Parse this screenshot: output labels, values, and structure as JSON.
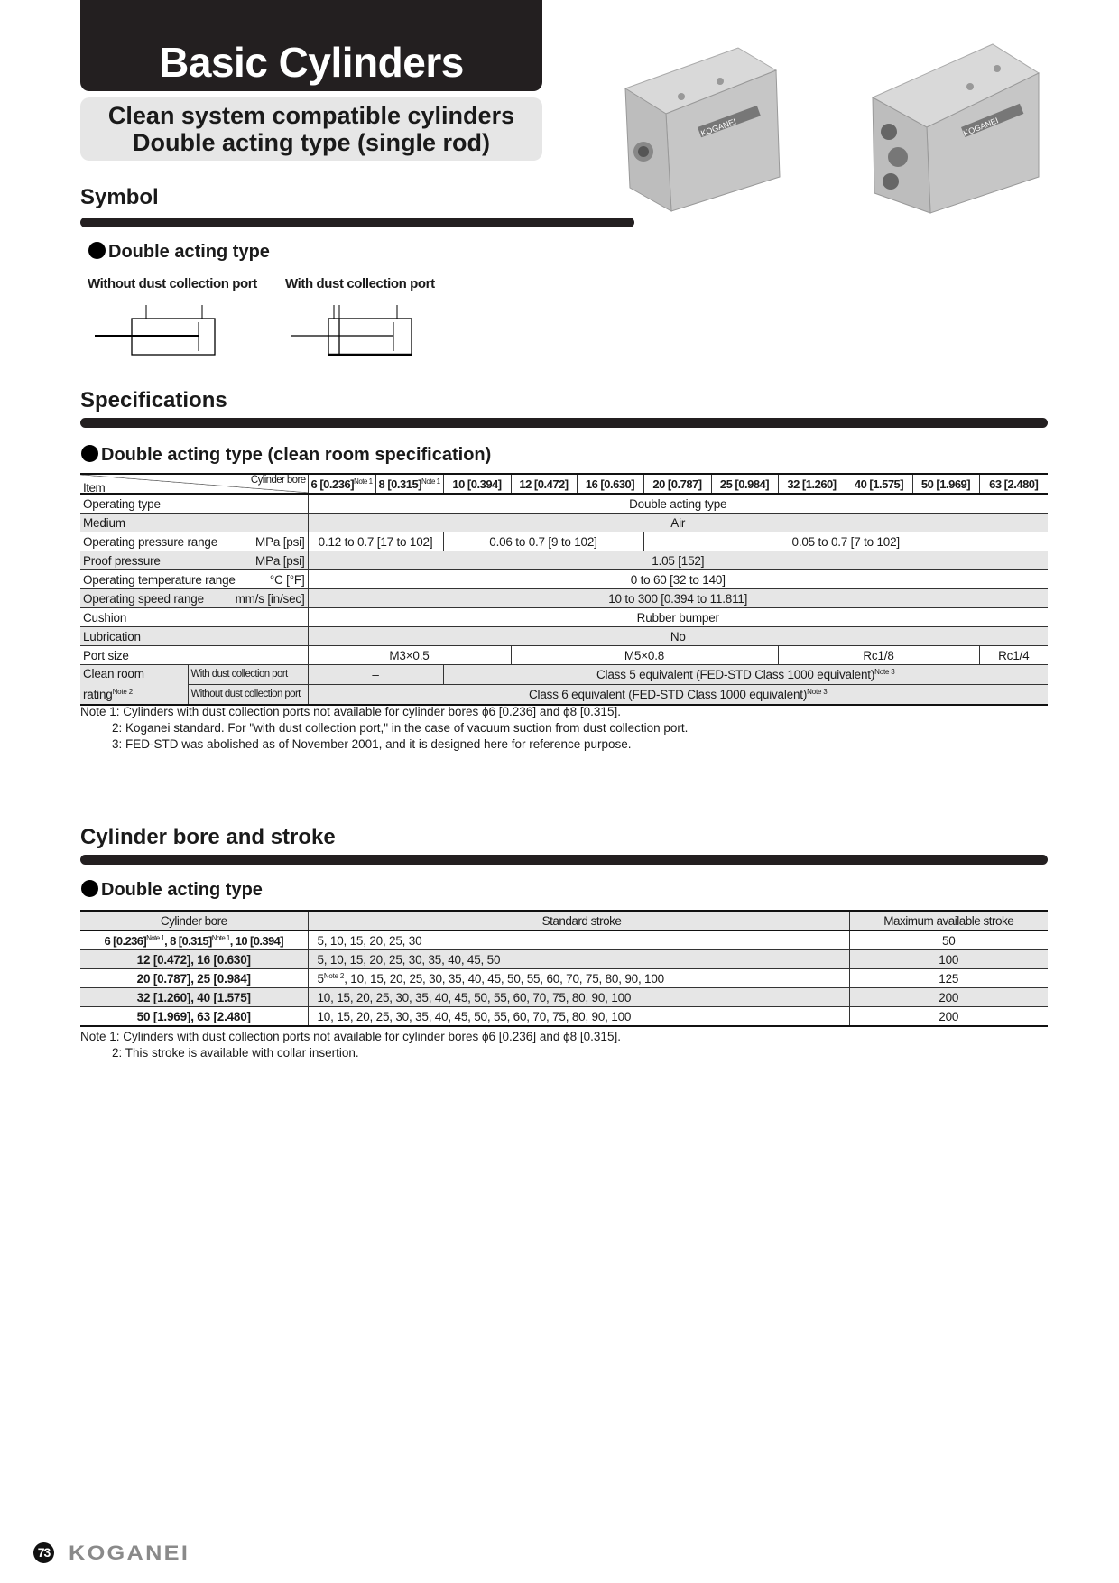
{
  "header": {
    "title": "Basic Cylinders",
    "subtitle_line1": "Clean system compatible cylinders",
    "subtitle_line2": "Double acting type (single rod)"
  },
  "symbol": {
    "heading": "Symbol",
    "subheading": "Double acting type",
    "label_without": "Without dust collection port",
    "label_with": "With dust collection port"
  },
  "specs": {
    "heading": "Specifications",
    "subheading": "Double acting type (clean room specification)",
    "corner_top": "Cylinder bore",
    "corner_bottom": "Item",
    "bores": [
      "6 [0.236]",
      "8 [0.315]",
      "10 [0.394]",
      "12 [0.472]",
      "16 [0.630]",
      "20 [0.787]",
      "25 [0.984]",
      "32 [1.260]",
      "40 [1.575]",
      "50 [1.969]",
      "63 [2.480]"
    ],
    "note_ref1": "Note 1",
    "note_ref2": "Note 2",
    "note_ref3": "Note 3",
    "rows": {
      "operating_type": {
        "label": "Operating type",
        "value": "Double acting type"
      },
      "medium": {
        "label": "Medium",
        "value": "Air"
      },
      "pressure": {
        "label": "Operating pressure range",
        "unit": "MPa [psi]",
        "values": [
          "0.12 to 0.7 [17 to 102]",
          "0.06 to 0.7 [9 to 102]",
          "0.05 to 0.7 [7 to 102]"
        ]
      },
      "proof": {
        "label": "Proof pressure",
        "unit": "MPa [psi]",
        "value": "1.05 [152]"
      },
      "temperature": {
        "label": "Operating temperature range",
        "unit": "°C [°F]",
        "value": "0 to 60 [32 to 140]"
      },
      "speed": {
        "label": "Operating speed range",
        "unit": "mm/s [in/sec]",
        "value": "10 to 300 [0.394 to 11.811]"
      },
      "cushion": {
        "label": "Cushion",
        "value": "Rubber bumper"
      },
      "lubrication": {
        "label": "Lubrication",
        "value": "No"
      },
      "port": {
        "label": "Port size",
        "values": [
          "M3×0.5",
          "M5×0.8",
          "Rc1/8",
          "Rc1/4"
        ]
      },
      "clean": {
        "label1": "Clean room",
        "label2": "rating",
        "with_label": "With dust collection port",
        "with_values": [
          "–",
          "Class 5 equivalent (FED-STD Class 1000 equivalent)"
        ],
        "without_label": "Without dust collection port",
        "without_value": "Class 6 equivalent (FED-STD Class 1000 equivalent)"
      }
    },
    "notes": [
      "Note 1: Cylinders with dust collection ports not available for cylinder bores ϕ6 [0.236] and ϕ8 [0.315].",
      "2: Koganei standard. For \"with dust collection port,\" in the case of vacuum suction from dust collection port.",
      "3: FED-STD was abolished as of November 2001, and it is designed here for reference purpose."
    ]
  },
  "stroke": {
    "heading": "Cylinder bore and stroke",
    "subheading": "Double acting type",
    "columns": [
      "Cylinder bore",
      "Standard stroke",
      "Maximum available stroke"
    ],
    "rows": [
      {
        "bore_a": "6 [0.236]",
        "ref_a": "Note 1",
        "bore_b": ", 8 [0.315]",
        "ref_b": "Note 1",
        "bore_c": ", 10 [0.394]",
        "stroke": "5, 10, 15, 20, 25, 30",
        "max": "50"
      },
      {
        "bore": "12 [0.472], 16 [0.630]",
        "stroke": "5, 10, 15, 20, 25, 30, 35, 40, 45, 50",
        "max": "100"
      },
      {
        "bore": "20 [0.787], 25 [0.984]",
        "stroke_first": "5",
        "stroke_ref": "Note 2",
        "stroke": ", 10, 15, 20, 25, 30, 35, 40, 45, 50, 55, 60, 70, 75, 80, 90, 100",
        "max": "125"
      },
      {
        "bore": "32 [1.260], 40 [1.575]",
        "stroke": "10, 15, 20, 25, 30, 35, 40, 45, 50, 55, 60, 70, 75, 80, 90, 100",
        "max": "200"
      },
      {
        "bore": "50 [1.969], 63 [2.480]",
        "stroke": "10, 15, 20, 25, 30, 35, 40, 45, 50, 55, 60, 70, 75, 80, 90, 100",
        "max": "200"
      }
    ],
    "notes": [
      "Note 1: Cylinders with dust collection ports not available for cylinder bores ϕ6 [0.236] and ϕ8 [0.315].",
      "2: This stroke is available with collar insertion."
    ]
  },
  "footer": {
    "page": "73",
    "brand": "KOGANEI"
  },
  "product_labels": [
    "KOGANEI",
    "KOGANEI"
  ],
  "colors": {
    "dark": "#231f20",
    "shade": "#e6e6e6",
    "brand_gray": "#8a8a8a"
  }
}
